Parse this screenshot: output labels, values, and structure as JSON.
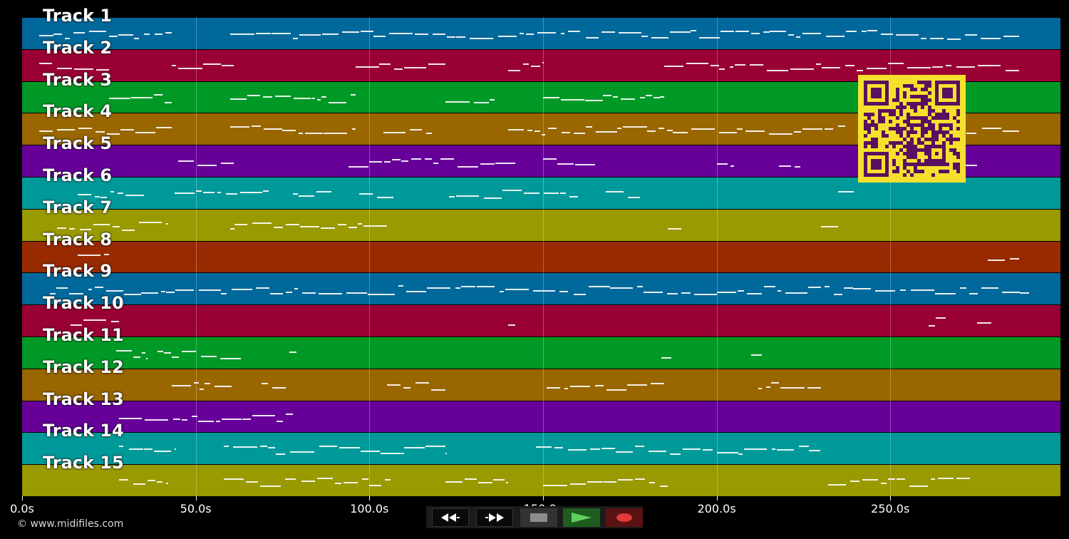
{
  "tracks": [
    {
      "label": "Track 1",
      "color": "#00689a"
    },
    {
      "label": "Track 2",
      "color": "#990033"
    },
    {
      "label": "Track 3",
      "color": "#009926"
    },
    {
      "label": "Track 4",
      "color": "#996600"
    },
    {
      "label": "Track 5",
      "color": "#660099"
    },
    {
      "label": "Track 6",
      "color": "#009999"
    },
    {
      "label": "Track 7",
      "color": "#999900"
    },
    {
      "label": "Track 8",
      "color": "#992a00"
    },
    {
      "label": "Track 9",
      "color": "#00689a"
    },
    {
      "label": "Track 10",
      "color": "#990033"
    },
    {
      "label": "Track 11",
      "color": "#009926"
    },
    {
      "label": "Track 12",
      "color": "#996600"
    },
    {
      "label": "Track 13",
      "color": "#660099"
    },
    {
      "label": "Track 14",
      "color": "#009999"
    },
    {
      "label": "Track 15",
      "color": "#999900"
    }
  ],
  "timeline": {
    "end_seconds": 299,
    "ticks": [
      {
        "value": 0,
        "label": "0.0s"
      },
      {
        "value": 50,
        "label": "50.0s"
      },
      {
        "value": 100,
        "label": "100.0s"
      },
      {
        "value": 150,
        "label": "150.0s"
      },
      {
        "value": 200,
        "label": "200.0s"
      },
      {
        "value": 250,
        "label": "250.0s"
      }
    ]
  },
  "credit": "© www.midifiles.com",
  "transport": [
    {
      "name": "rewind-button",
      "icon": "rewind-icon"
    },
    {
      "name": "fast-forward-button",
      "icon": "fast-forward-icon"
    },
    {
      "name": "stop-button",
      "icon": "stop-icon"
    },
    {
      "name": "play-button",
      "icon": "play-icon"
    },
    {
      "name": "record-button",
      "icon": "record-icon"
    }
  ],
  "qr_code": {
    "icon": "qr-code-icon",
    "background": "#f5e12d",
    "foreground": "#5a1060"
  }
}
